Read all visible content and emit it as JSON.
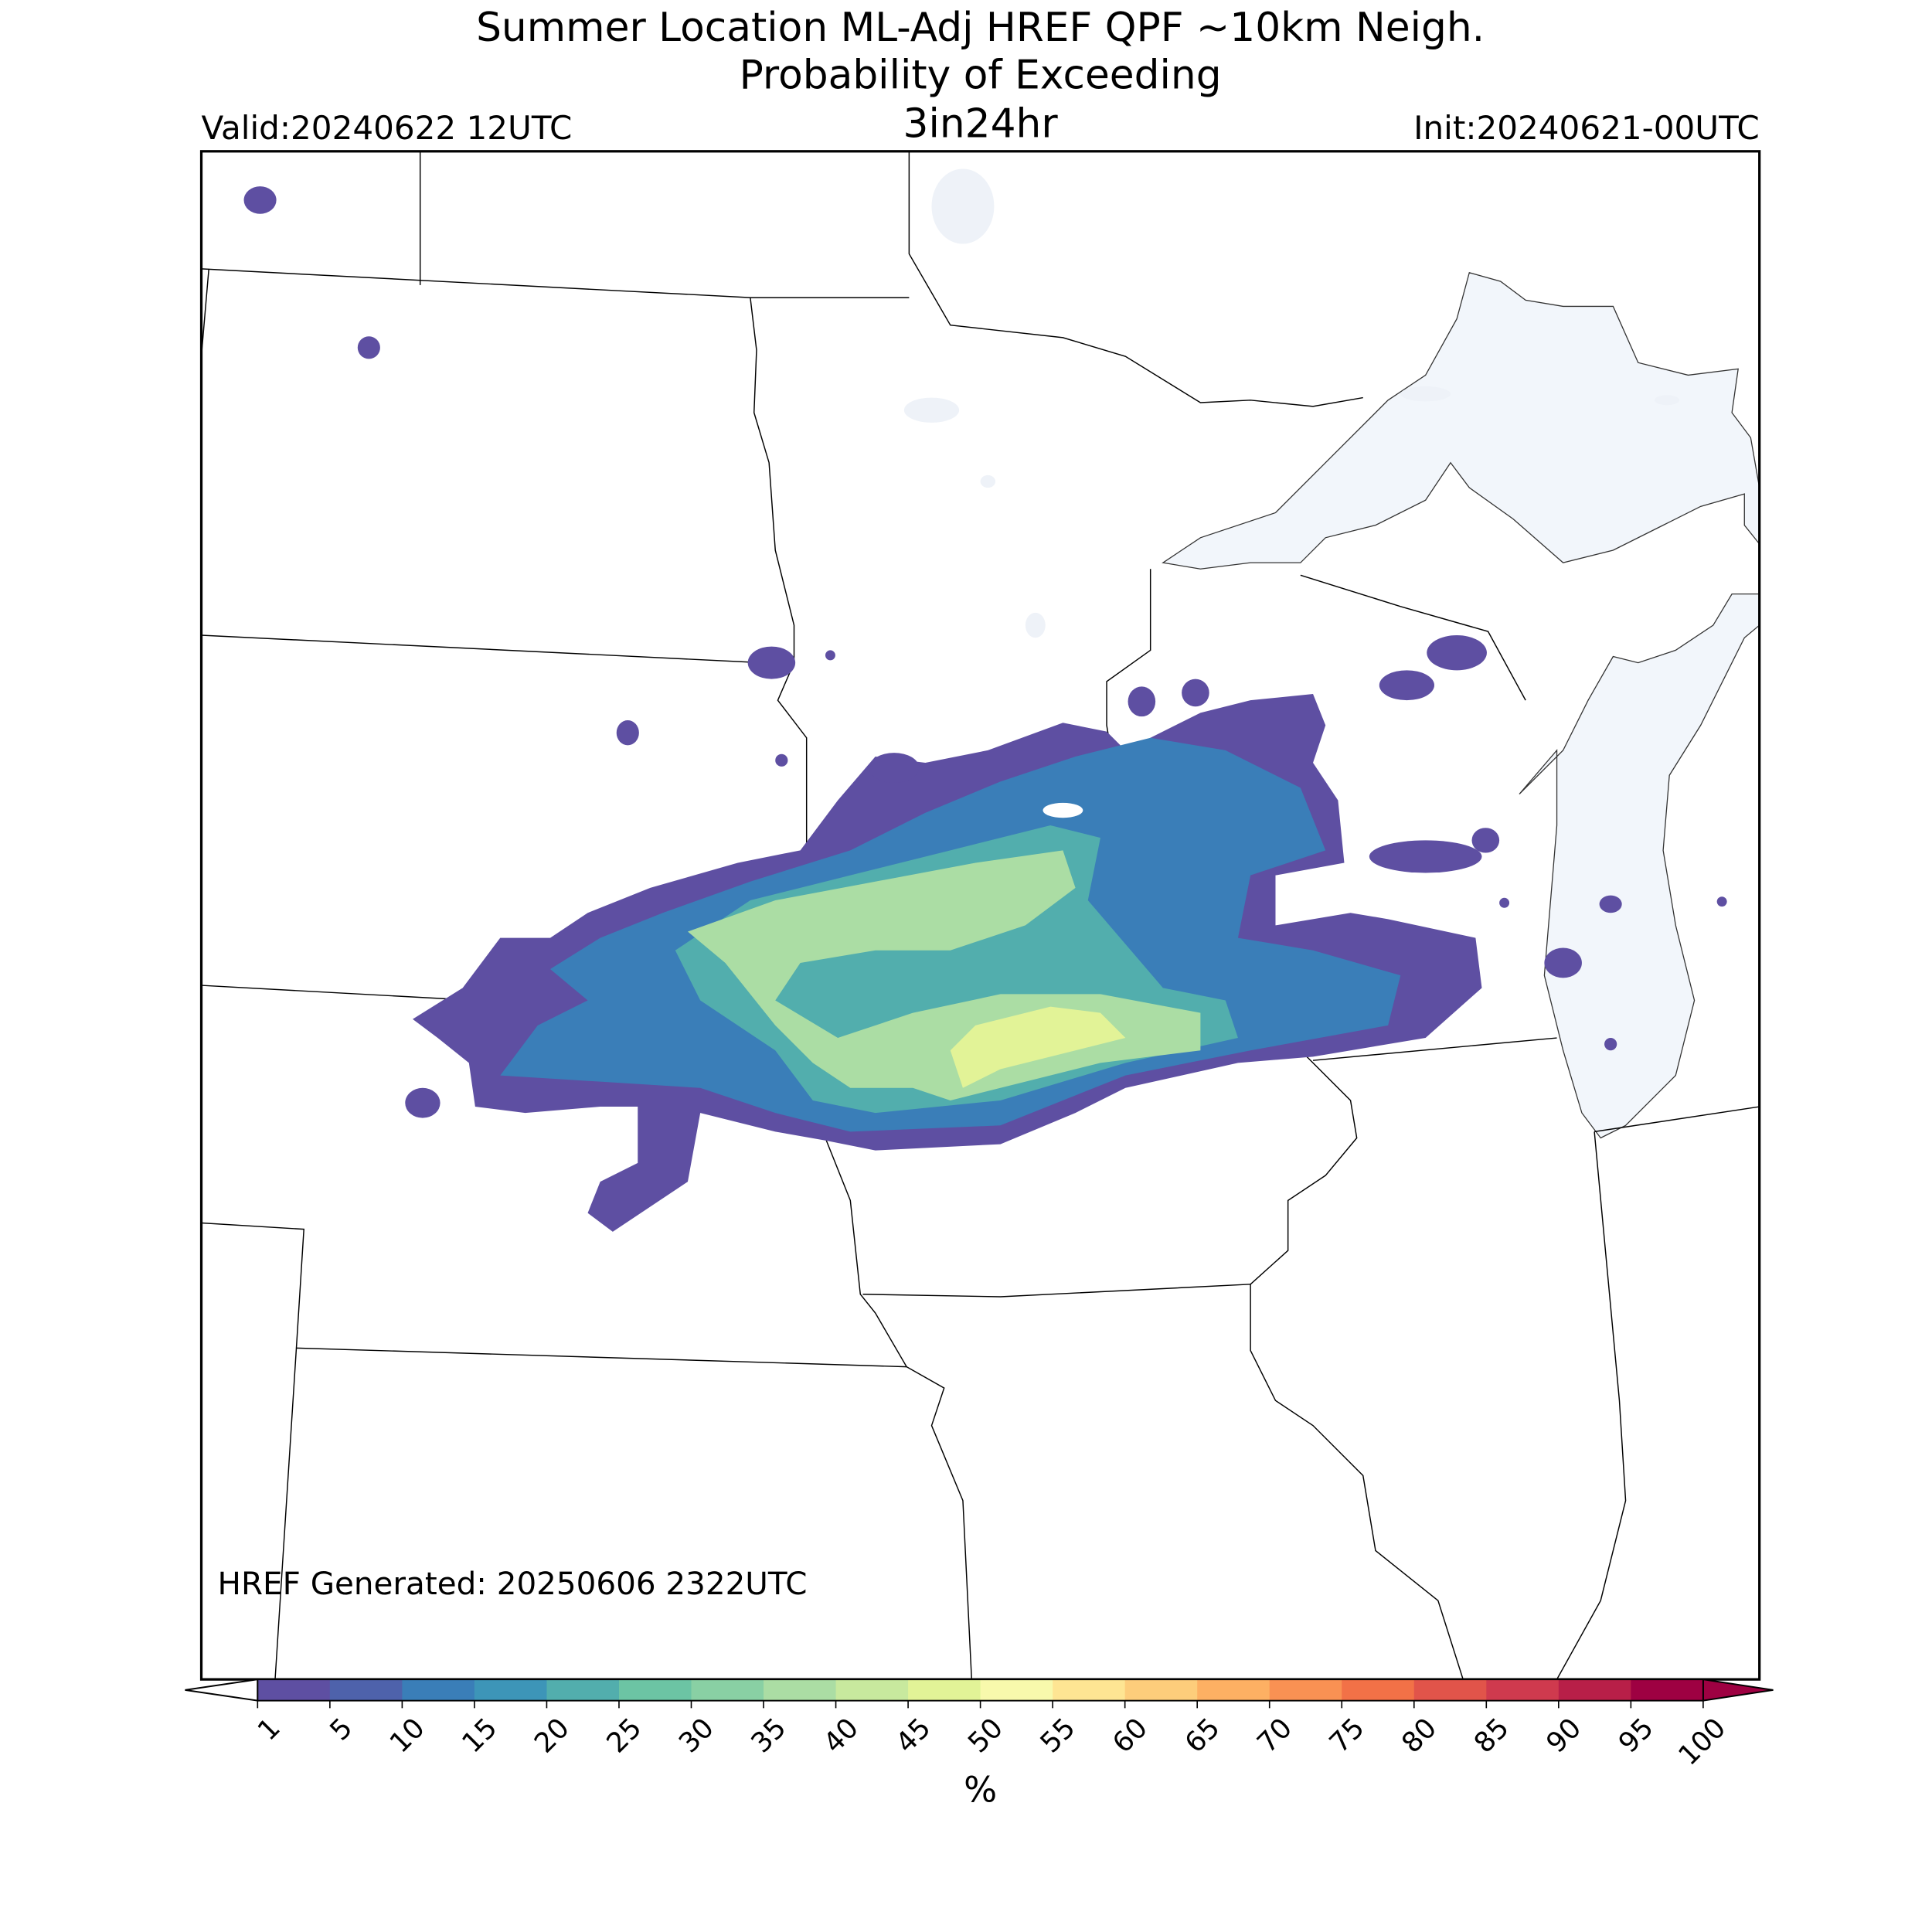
{
  "header": {
    "title_line1": "Summer Location ML-Adj HREF QPF ~10km Neigh.",
    "title_line2": "Probability of Exceeding",
    "threshold": "3in24hr",
    "valid": "Valid:20240622 12UTC",
    "init": "Init:20240621-00UTC"
  },
  "footer": {
    "generated": "HREF Generated: 20250606 2322UTC"
  },
  "colorbar": {
    "label": "%",
    "ticks": [
      1,
      5,
      10,
      15,
      20,
      25,
      30,
      35,
      40,
      45,
      50,
      55,
      60,
      65,
      70,
      75,
      80,
      85,
      90,
      95,
      100
    ],
    "colors": [
      "#5e4fa2",
      "#4e62ab",
      "#3a7eb8",
      "#3d95b8",
      "#52aead",
      "#6cc4a4",
      "#89d0a4",
      "#abdda4",
      "#c8e99e",
      "#e2f397",
      "#f8f9ac",
      "#fee593",
      "#fdcd7b",
      "#fdb063",
      "#f99153",
      "#f27147",
      "#e1544a",
      "#cf3a4e",
      "#b81f48",
      "#9e0142"
    ],
    "under_color": "#ffffff",
    "over_color": "#9e0142"
  }
}
